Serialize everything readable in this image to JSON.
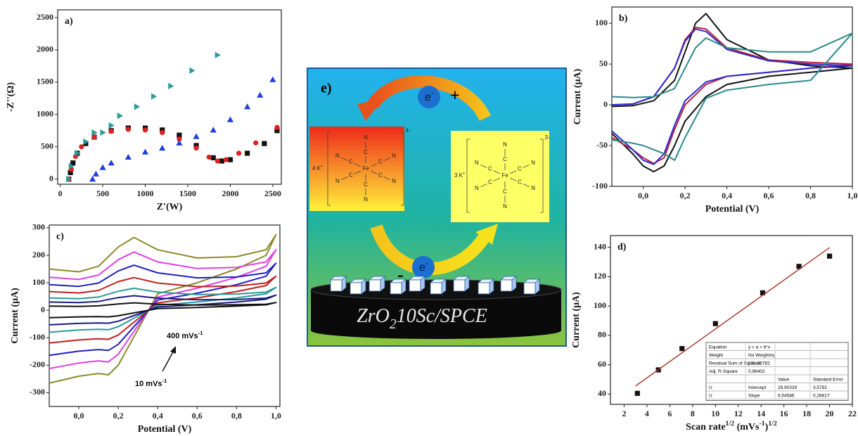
{
  "chart_data": [
    {
      "type": "scatter",
      "title": "a)",
      "xlabel": "Z'(W)",
      "ylabel": "-Z''(Ω)",
      "xlim": [
        -30,
        2600
      ],
      "ylim": [
        -80,
        2620
      ],
      "xticks": [
        0,
        500,
        1000,
        1500,
        2000,
        2500
      ],
      "yticks": [
        0,
        500,
        1000,
        1500,
        2000,
        2500
      ],
      "series": [
        {
          "color": "#111111",
          "marker": "square",
          "x": [
            100,
            120,
            150,
            200,
            300,
            400,
            600,
            800,
            1000,
            1200,
            1400,
            1600,
            1800,
            1900,
            2000,
            2200,
            2400,
            2550
          ],
          "values": [
            0,
            100,
            250,
            400,
            550,
            650,
            750,
            790,
            790,
            760,
            680,
            520,
            330,
            280,
            300,
            400,
            550,
            750
          ]
        },
        {
          "color": "#e02020",
          "marker": "circle",
          "x": [
            100,
            130,
            180,
            250,
            400,
            600,
            800,
            1000,
            1200,
            1400,
            1600,
            1750,
            1850,
            1950,
            2100,
            2300,
            2550
          ],
          "values": [
            0,
            150,
            350,
            500,
            650,
            740,
            770,
            760,
            720,
            620,
            480,
            340,
            280,
            300,
            400,
            560,
            800
          ]
        },
        {
          "color": "#1f3fe0",
          "marker": "triangle-up",
          "x": [
            380,
            420,
            500,
            600,
            800,
            1000,
            1200,
            1400,
            1600,
            1800,
            2000,
            2200,
            2350,
            2500
          ],
          "values": [
            0,
            80,
            180,
            250,
            340,
            420,
            480,
            560,
            660,
            760,
            920,
            1120,
            1300,
            1540
          ]
        },
        {
          "color": "#2a9a9a",
          "marker": "triangle-right",
          "x": [
            100,
            130,
            200,
            300,
            400,
            500,
            600,
            700,
            900,
            1100,
            1300,
            1550,
            1850
          ],
          "values": [
            0,
            200,
            400,
            580,
            720,
            720,
            830,
            980,
            1120,
            1280,
            1440,
            1680,
            1920
          ]
        }
      ]
    },
    {
      "type": "line",
      "title": "b)",
      "xlabel": "Potential (V)",
      "ylabel": "Current (μA)",
      "xlim": [
        -0.15,
        1.0
      ],
      "ylim": [
        -100,
        120
      ],
      "xticks": [
        {
          "value": 0,
          "label": "0,0"
        },
        {
          "value": 0.2,
          "label": "0,2"
        },
        {
          "value": 0.4,
          "label": "0,4"
        },
        {
          "value": 0.6,
          "label": "0,6"
        },
        {
          "value": 0.8,
          "label": "0,8"
        },
        {
          "value": 1.0,
          "label": "1,0"
        }
      ],
      "yticks": [
        -100,
        -50,
        0,
        50,
        100
      ],
      "x": [
        -0.15,
        -0.05,
        0.05,
        0.15,
        0.2,
        0.25,
        0.3,
        0.4,
        0.6,
        0.8,
        1.0,
        0.8,
        0.6,
        0.4,
        0.3,
        0.2,
        0.15,
        0.1,
        0.05,
        0,
        -0.05,
        -0.15
      ],
      "series": [
        {
          "color": "#111111",
          "values": [
            -2,
            -1,
            5,
            30,
            65,
            100,
            112,
            80,
            55,
            48,
            45,
            40,
            35,
            25,
            10,
            -20,
            -50,
            -75,
            -82,
            -75,
            -60,
            -35
          ]
        },
        {
          "color": "#c0203a",
          "values": [
            0,
            1,
            10,
            45,
            80,
            95,
            93,
            70,
            55,
            52,
            50,
            45,
            40,
            35,
            25,
            0,
            -30,
            -65,
            -72,
            -65,
            -55,
            -40
          ]
        },
        {
          "color": "#2a2ad0",
          "values": [
            0,
            1,
            10,
            45,
            78,
            93,
            90,
            68,
            54,
            50,
            48,
            45,
            40,
            35,
            28,
            5,
            -25,
            -60,
            -73,
            -68,
            -55,
            -32
          ]
        },
        {
          "color": "#2a8a8a",
          "values": [
            10,
            9,
            10,
            20,
            45,
            70,
            82,
            70,
            65,
            65,
            88,
            30,
            25,
            18,
            8,
            -40,
            -68,
            -60,
            -55,
            -50,
            -47,
            -43
          ]
        }
      ]
    },
    {
      "type": "line",
      "title": "c)",
      "xlabel": "Potential (V)",
      "ylabel": "Current (μA)",
      "xlim": [
        -0.15,
        1.02
      ],
      "ylim": [
        -350,
        310
      ],
      "xticks": [
        {
          "value": 0,
          "label": "0,0"
        },
        {
          "value": 0.2,
          "label": "0,2"
        },
        {
          "value": 0.4,
          "label": "0,4"
        },
        {
          "value": 0.6,
          "label": "0,6"
        },
        {
          "value": 0.8,
          "label": "0,8"
        },
        {
          "value": 1.0,
          "label": "1,0"
        }
      ],
      "yticks": [
        -300,
        -200,
        -100,
        0,
        100,
        200,
        300
      ],
      "annotations": [
        [
          "400 mVs",
          "-1"
        ],
        [
          "10 mVs",
          "-1"
        ]
      ],
      "x": [
        -0.15,
        0.0,
        0.1,
        0.2,
        0.28,
        0.4,
        0.6,
        0.8,
        0.95,
        1.0,
        0.95,
        0.8,
        0.6,
        0.4,
        0.2,
        0.15,
        0.1,
        0.0,
        -0.15
      ],
      "series": [
        {
          "color": "#8a8a2a",
          "values": [
            150,
            140,
            160,
            230,
            265,
            220,
            190,
            195,
            220,
            275,
            200,
            150,
            100,
            60,
            -200,
            -235,
            -230,
            -240,
            -265
          ]
        },
        {
          "color": "#e040e0",
          "values": [
            120,
            112,
            128,
            184,
            212,
            176,
            152,
            156,
            176,
            220,
            160,
            120,
            80,
            48,
            -160,
            -188,
            -184,
            -192,
            -212
          ]
        },
        {
          "color": "#2020c0",
          "values": [
            93,
            87,
            99,
            143,
            164,
            136,
            118,
            121,
            136,
            171,
            124,
            93,
            62,
            37,
            -124,
            -146,
            -143,
            -149,
            -164
          ]
        },
        {
          "color": "#c02020",
          "values": [
            68,
            63,
            72,
            104,
            119,
            99,
            86,
            88,
            99,
            124,
            90,
            68,
            45,
            27,
            -90,
            -106,
            -104,
            -108,
            -119
          ]
        },
        {
          "color": "#2a9a9a",
          "values": [
            45,
            42,
            48,
            69,
            80,
            66,
            57,
            59,
            66,
            83,
            60,
            45,
            30,
            18,
            -60,
            -71,
            -69,
            -72,
            -80
          ]
        },
        {
          "color": "#1a1a80",
          "values": [
            30,
            28,
            32,
            46,
            53,
            44,
            38,
            39,
            44,
            55,
            40,
            30,
            20,
            12,
            -40,
            -47,
            -46,
            -48,
            -53
          ]
        },
        {
          "color": "#111111",
          "values": [
            15,
            14,
            16,
            23,
            27,
            22,
            19,
            20,
            22,
            28,
            20,
            15,
            10,
            6,
            -20,
            -24,
            -23,
            -24,
            -27
          ]
        }
      ]
    },
    {
      "type": "scatter",
      "title": "d)",
      "xlabel": [
        "Scan rate",
        "1/2",
        " (mVs",
        "-1",
        ")",
        "1/2"
      ],
      "ylabel": "Current (μA)",
      "xlim": [
        0.8,
        22
      ],
      "ylim": [
        33,
        148
      ],
      "xticks": [
        2,
        4,
        6,
        8,
        10,
        12,
        14,
        16,
        18,
        20,
        22
      ],
      "yticks": [
        40,
        60,
        80,
        100,
        120,
        140
      ],
      "series": [
        {
          "color": "#111111",
          "marker": "square",
          "x": [
            3.16,
            5,
            7.07,
            10,
            14.14,
            17.32,
            20
          ],
          "values": [
            40.5,
            56.5,
            71,
            88,
            109,
            127,
            134
          ]
        }
      ],
      "fit": {
        "color": "#b03a2e",
        "x": [
          3,
          20
        ],
        "values": [
          45.54,
          139.82
        ]
      },
      "table": {
        "info": [
          [
            "Equation",
            "y = a + b*x"
          ],
          [
            "Weight",
            "No Weighting"
          ],
          [
            "Residual Sum of Squares",
            "101,35782"
          ],
          [
            "Adj. R-Square",
            "0,98402"
          ]
        ],
        "header": [
          "Value",
          "Standard Error"
        ],
        "params": [
          [
            "U",
            "Intercept",
            "28,90339",
            "3,5782"
          ],
          [
            "U",
            "Slope",
            "5,54586",
            "0,28817"
          ]
        ]
      }
    }
  ],
  "diagram": {
    "label": "e)",
    "electron": [
      "e",
      "-"
    ],
    "plus": "+",
    "minus": "-",
    "left_complex": {
      "counter_ion": [
        "4 K",
        "+"
      ],
      "metal": "Fe",
      "carbon": "C",
      "nitrogen": "N",
      "charge": "4-"
    },
    "right_complex": {
      "counter_ion": [
        "3 K",
        "+"
      ],
      "metal": "Fe",
      "carbon": "C",
      "nitrogen": "N",
      "charge": "3-"
    },
    "electrode": [
      "ZrO",
      "2",
      "10Sc/SPCE"
    ]
  }
}
